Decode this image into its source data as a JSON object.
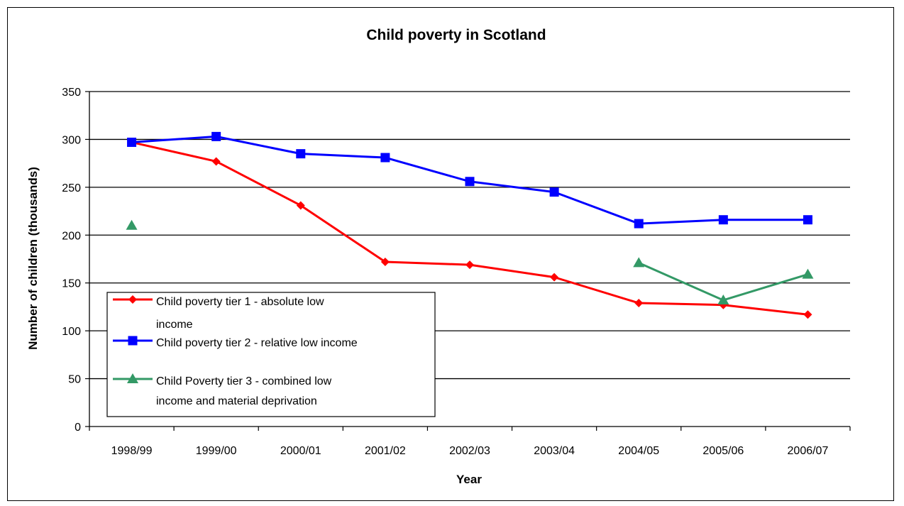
{
  "chart_data": {
    "type": "line",
    "title": "Child poverty in Scotland",
    "xlabel": "Year",
    "ylabel": "Number of children (thousands)",
    "categories": [
      "1998/99",
      "1999/00",
      "2000/01",
      "2001/02",
      "2002/03",
      "2003/04",
      "2004/05",
      "2005/06",
      "2006/07"
    ],
    "ylim": [
      0,
      350
    ],
    "yticks": [
      0,
      50,
      100,
      150,
      200,
      250,
      300,
      350
    ],
    "grid": "horizontal",
    "legend_position": "bottom-left",
    "series": [
      {
        "name_lines": [
          "Child poverty tier 1 - absolute low",
          "income"
        ],
        "color": "#ff0000",
        "marker": "diamond",
        "values": [
          297,
          277,
          231,
          172,
          169,
          156,
          129,
          127,
          117
        ]
      },
      {
        "name_lines": [
          "Child poverty tier 2 - relative low income"
        ],
        "color": "#0000ff",
        "marker": "square",
        "values": [
          297,
          303,
          285,
          281,
          256,
          245,
          212,
          216,
          216
        ]
      },
      {
        "name_lines": [
          "Child Poverty tier 3 - combined low",
          "income and material deprivation"
        ],
        "color": "#339966",
        "marker": "triangle",
        "values": [
          210,
          null,
          null,
          null,
          null,
          null,
          171,
          132,
          159
        ]
      }
    ]
  }
}
